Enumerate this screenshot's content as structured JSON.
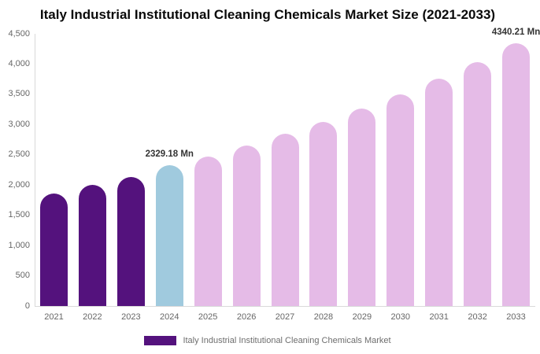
{
  "title": "Italy Industrial Institutional Cleaning Chemicals Market Size (2021-2033)",
  "colors": {
    "historical_bar": "#54127d",
    "current_bar": "#a0cade",
    "forecast_bar": "#e5bbe7",
    "axis_line": "#d9d9d9",
    "axis_text": "#666666",
    "annotation_text": "#333333",
    "title_text": "#0a0a0a",
    "legend_text": "#6e6e6e",
    "background": "#ffffff"
  },
  "chart_data": {
    "type": "bar",
    "title": "Italy Industrial Institutional Cleaning Chemicals Market Size (2021-2033)",
    "xlabel": "",
    "ylabel": "",
    "ylim": [
      0,
      4500
    ],
    "grid": false,
    "categories": [
      "2021",
      "2022",
      "2023",
      "2024",
      "2025",
      "2026",
      "2027",
      "2028",
      "2029",
      "2030",
      "2031",
      "2032",
      "2033"
    ],
    "values": [
      1860,
      2005,
      2135,
      2329.18,
      2470,
      2650,
      2845,
      3050,
      3270,
      3505,
      3760,
      4030,
      4340.21
    ],
    "bar_colors": [
      "#54127d",
      "#54127d",
      "#54127d",
      "#a0cade",
      "#e5bbe7",
      "#e5bbe7",
      "#e5bbe7",
      "#e5bbe7",
      "#e5bbe7",
      "#e5bbe7",
      "#e5bbe7",
      "#e5bbe7",
      "#e5bbe7"
    ],
    "annotations": [
      {
        "index": 3,
        "text": "2329.18 Mn"
      },
      {
        "index": 12,
        "text": "4340.21 Mn"
      }
    ],
    "ytick_values": [
      0,
      500,
      1000,
      1500,
      2000,
      2500,
      3000,
      3500,
      4000,
      4500
    ],
    "ytick_labels": [
      "0",
      "500",
      "1,000",
      "1,500",
      "2,000",
      "2,500",
      "3,000",
      "3,500",
      "4,000",
      "4,500"
    ],
    "legend": {
      "position": "bottom",
      "entries": [
        {
          "label": "Italy Industrial Institutional Cleaning Chemicals Market",
          "swatch_color": "#54127d"
        }
      ]
    }
  }
}
